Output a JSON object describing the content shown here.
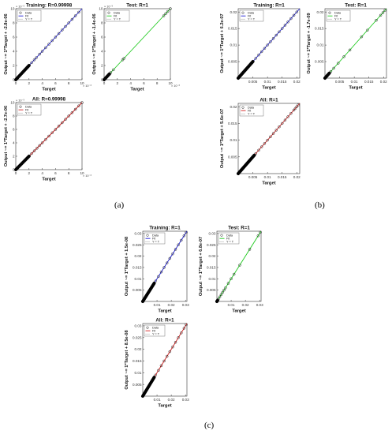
{
  "panel_labels": {
    "a": "(a)",
    "b": "(b)",
    "c": "(c)"
  },
  "legend_labels": {
    "data": "Data",
    "fit": "Fit",
    "ident": "Y = T"
  },
  "chart_data": [
    {
      "id": "a-training",
      "type": "scatter",
      "title": "Training: R=0.99998",
      "xlabel": "Target",
      "ylabel": "Output ~= 1*Target + -2.8e-06",
      "xlim": [
        0,
        10
      ],
      "ylim": [
        0,
        10
      ],
      "xticks": [
        "0",
        "2",
        "4",
        "6",
        "8",
        "10"
      ],
      "yticks": [
        "0",
        "2",
        "4",
        "6",
        "8",
        "10"
      ],
      "xexp": "× 10⁻³",
      "yexp": "× 10⁻³",
      "fit_color": "#1f1fd6",
      "points": [
        [
          0,
          0
        ],
        [
          0.4,
          0.4
        ],
        [
          0.8,
          0.8
        ],
        [
          1.2,
          1.2
        ],
        [
          1.6,
          1.6
        ],
        [
          2.0,
          2.0
        ],
        [
          2.4,
          2.4
        ],
        [
          2.8,
          2.8
        ],
        [
          3.1,
          3.1
        ],
        [
          3.6,
          3.6
        ],
        [
          4.0,
          4.0
        ],
        [
          4.5,
          4.5
        ],
        [
          5.0,
          5.0
        ],
        [
          5.5,
          5.5
        ],
        [
          6.0,
          6.0
        ],
        [
          6.5,
          6.5
        ],
        [
          7.0,
          7.0
        ],
        [
          7.5,
          7.5
        ],
        [
          8.0,
          8.0
        ],
        [
          8.5,
          8.5
        ],
        [
          9.0,
          9.0
        ],
        [
          9.5,
          9.5
        ]
      ],
      "dense_range": [
        0,
        2
      ]
    },
    {
      "id": "a-test",
      "type": "scatter",
      "title": "Test: R=1",
      "xlabel": "Target",
      "ylabel": "Output ~= 1*Target + -1.4e-06",
      "xlim": [
        0,
        10
      ],
      "ylim": [
        0,
        10
      ],
      "xticks": [
        "0",
        "2",
        "4",
        "6",
        "8",
        "10"
      ],
      "yticks": [
        "0",
        "2",
        "4",
        "6",
        "8",
        "10"
      ],
      "xexp": "× 10⁻³",
      "yexp": "× 10⁻³",
      "fit_color": "#1fcc1f",
      "points": [
        [
          0,
          0
        ],
        [
          0.3,
          0.3
        ],
        [
          0.6,
          0.6
        ],
        [
          1.0,
          1.0
        ],
        [
          1.4,
          1.4
        ],
        [
          2.8,
          2.8
        ],
        [
          3.0,
          3.0
        ],
        [
          9.0,
          9.0
        ],
        [
          9.3,
          9.3
        ],
        [
          9.6,
          9.6
        ],
        [
          10,
          10
        ]
      ],
      "dense_range": [
        0,
        0.8
      ]
    },
    {
      "id": "a-all",
      "type": "scatter",
      "title": "All: R=0.99998",
      "xlabel": "Target",
      "ylabel": "Output ~= 1*Target + -2.7e-06",
      "xlim": [
        0,
        10
      ],
      "ylim": [
        0,
        10
      ],
      "xticks": [
        "0",
        "2",
        "4",
        "6",
        "8",
        "10"
      ],
      "yticks": [
        "0",
        "2",
        "4",
        "6",
        "8",
        "10"
      ],
      "xexp": "× 10⁻³",
      "yexp": "× 10⁻³",
      "fit_color": "#d41f1f",
      "points": [
        [
          0,
          0
        ],
        [
          0.4,
          0.4
        ],
        [
          0.8,
          0.8
        ],
        [
          1.2,
          1.2
        ],
        [
          1.6,
          1.6
        ],
        [
          2.0,
          2.0
        ],
        [
          2.4,
          2.4
        ],
        [
          2.8,
          2.8
        ],
        [
          3.2,
          3.2
        ],
        [
          3.6,
          3.6
        ],
        [
          4.0,
          4.0
        ],
        [
          4.5,
          4.5
        ],
        [
          5.0,
          5.0
        ],
        [
          5.5,
          5.5
        ],
        [
          6.0,
          6.0
        ],
        [
          6.5,
          6.5
        ],
        [
          7.0,
          7.0
        ],
        [
          7.5,
          7.5
        ],
        [
          8.0,
          8.0
        ],
        [
          8.5,
          8.5
        ],
        [
          9.0,
          9.0
        ],
        [
          9.5,
          9.5
        ],
        [
          10,
          10
        ]
      ],
      "dense_range": [
        0,
        2
      ]
    },
    {
      "id": "b-training",
      "type": "scatter",
      "title": "Training: R=1",
      "xlabel": "Target",
      "ylabel": "Output ~= 1*Target + 6.2e-07",
      "xlim": [
        0,
        0.021
      ],
      "ylim": [
        0,
        0.021
      ],
      "xticks": [
        "0.005",
        "0.01",
        "0.015",
        "0.02"
      ],
      "xtickvals": [
        0.005,
        0.01,
        0.015,
        0.02
      ],
      "yticks": [
        "0.005",
        "0.01",
        "0.015",
        "0.02"
      ],
      "ytickvals": [
        0.005,
        0.01,
        0.015,
        0.02
      ],
      "fit_color": "#1f1fd6",
      "points": [
        [
          0.001,
          0.001
        ],
        [
          0.002,
          0.002
        ],
        [
          0.003,
          0.003
        ],
        [
          0.004,
          0.004
        ],
        [
          0.005,
          0.005
        ],
        [
          0.006,
          0.006
        ],
        [
          0.007,
          0.007
        ],
        [
          0.008,
          0.008
        ],
        [
          0.009,
          0.009
        ],
        [
          0.01,
          0.01
        ],
        [
          0.011,
          0.011
        ],
        [
          0.012,
          0.012
        ],
        [
          0.013,
          0.013
        ],
        [
          0.014,
          0.014
        ],
        [
          0.015,
          0.015
        ],
        [
          0.016,
          0.016
        ],
        [
          0.017,
          0.017
        ],
        [
          0.018,
          0.018
        ],
        [
          0.019,
          0.019
        ],
        [
          0.02,
          0.02
        ]
      ],
      "dense_range": [
        0,
        0.005
      ]
    },
    {
      "id": "b-test",
      "type": "scatter",
      "title": "Test: R=1",
      "xlabel": "Target",
      "ylabel": "Output ~= 1*Target + -1.7e-09",
      "xlim": [
        0,
        0.021
      ],
      "ylim": [
        0,
        0.021
      ],
      "xticks": [
        "0.005",
        "0.01",
        "0.015",
        "0.02"
      ],
      "xtickvals": [
        0.005,
        0.01,
        0.015,
        0.02
      ],
      "yticks": [
        "0.005",
        "0.01",
        "0.015",
        "0.02"
      ],
      "ytickvals": [
        0.005,
        0.01,
        0.015,
        0.02
      ],
      "fit_color": "#1fcc1f",
      "points": [
        [
          0.0005,
          0.0005
        ],
        [
          0.0012,
          0.0012
        ],
        [
          0.002,
          0.002
        ],
        [
          0.003,
          0.003
        ],
        [
          0.0045,
          0.0045
        ],
        [
          0.0065,
          0.0065
        ],
        [
          0.0085,
          0.0085
        ],
        [
          0.0125,
          0.0125
        ],
        [
          0.0145,
          0.0145
        ],
        [
          0.0175,
          0.0175
        ],
        [
          0.019,
          0.019
        ],
        [
          0.0198,
          0.0198
        ],
        [
          0.0205,
          0.0205
        ]
      ],
      "dense_range": [
        0,
        0.0015
      ]
    },
    {
      "id": "b-all",
      "type": "scatter",
      "title": "All: R=1",
      "xlabel": "Target",
      "ylabel": "Output ~= 1*Target + 5.6e-07",
      "xlim": [
        0,
        0.021
      ],
      "ylim": [
        0,
        0.021
      ],
      "xticks": [
        "0.005",
        "0.01",
        "0.015",
        "0.02"
      ],
      "xtickvals": [
        0.005,
        0.01,
        0.015,
        0.02
      ],
      "yticks": [
        "0.005",
        "0.01",
        "0.015",
        "0.02"
      ],
      "ytickvals": [
        0.005,
        0.01,
        0.015,
        0.02
      ],
      "fit_color": "#d41f1f",
      "points": [
        [
          0.006,
          0.006
        ],
        [
          0.007,
          0.007
        ],
        [
          0.008,
          0.008
        ],
        [
          0.009,
          0.009
        ],
        [
          0.01,
          0.01
        ],
        [
          0.011,
          0.011
        ],
        [
          0.012,
          0.012
        ],
        [
          0.013,
          0.013
        ],
        [
          0.014,
          0.014
        ],
        [
          0.015,
          0.015
        ],
        [
          0.016,
          0.016
        ],
        [
          0.017,
          0.017
        ],
        [
          0.018,
          0.018
        ],
        [
          0.019,
          0.019
        ],
        [
          0.0195,
          0.0195
        ],
        [
          0.02,
          0.02
        ],
        [
          0.0205,
          0.0205
        ]
      ],
      "dense_range": [
        0,
        0.0055
      ]
    },
    {
      "id": "c-training",
      "type": "scatter",
      "title": "Training: R=1",
      "xlabel": "Target",
      "ylabel": "Output ~= 1*Target + 1.5e-08",
      "xlim": [
        0,
        0.031
      ],
      "ylim": [
        0,
        0.031
      ],
      "xticks": [
        "0.01",
        "0.02",
        "0.03"
      ],
      "xtickvals": [
        0.01,
        0.02,
        0.03
      ],
      "yticks": [
        "0.005",
        "0.01",
        "0.015",
        "0.02",
        "0.025",
        "0.03"
      ],
      "ytickvals": [
        0.005,
        0.01,
        0.015,
        0.02,
        0.025,
        0.03
      ],
      "fit_color": "#1f1fd6",
      "points": [
        [
          0.009,
          0.009
        ],
        [
          0.011,
          0.011
        ],
        [
          0.013,
          0.013
        ],
        [
          0.015,
          0.015
        ],
        [
          0.017,
          0.017
        ],
        [
          0.019,
          0.019
        ],
        [
          0.021,
          0.021
        ],
        [
          0.023,
          0.023
        ],
        [
          0.025,
          0.025
        ],
        [
          0.027,
          0.027
        ],
        [
          0.029,
          0.029
        ],
        [
          0.0305,
          0.0305
        ]
      ],
      "dense_range": [
        0,
        0.008
      ]
    },
    {
      "id": "c-test",
      "type": "scatter",
      "title": "Test: R=1",
      "xlabel": "Target",
      "ylabel": "Output ~= 1*Target + 6.8e-07",
      "xlim": [
        0,
        0.031
      ],
      "ylim": [
        0,
        0.031
      ],
      "xticks": [
        "0.01",
        "0.02",
        "0.03"
      ],
      "xtickvals": [
        0.01,
        0.02,
        0.03
      ],
      "yticks": [
        "0.005",
        "0.01",
        "0.015",
        "0.02",
        "0.025",
        "0.03"
      ],
      "ytickvals": [
        0.005,
        0.01,
        0.015,
        0.02,
        0.025,
        0.03
      ],
      "fit_color": "#1fcc1f",
      "points": [
        [
          0.001,
          0.001
        ],
        [
          0.002,
          0.002
        ],
        [
          0.003,
          0.003
        ],
        [
          0.004,
          0.004
        ],
        [
          0.005,
          0.005
        ],
        [
          0.006,
          0.006
        ],
        [
          0.008,
          0.008
        ],
        [
          0.01,
          0.01
        ],
        [
          0.012,
          0.012
        ],
        [
          0.016,
          0.016
        ],
        [
          0.023,
          0.023
        ],
        [
          0.029,
          0.029
        ],
        [
          0.0305,
          0.0305
        ]
      ],
      "dense_range": [
        0,
        0.0005
      ]
    },
    {
      "id": "c-all",
      "type": "scatter",
      "title": "All: R=1",
      "xlabel": "Target",
      "ylabel": "Output ~= 1*Target + 8.5e-08",
      "xlim": [
        0,
        0.031
      ],
      "ylim": [
        0,
        0.031
      ],
      "xticks": [
        "0.01",
        "0.02",
        "0.03"
      ],
      "xtickvals": [
        0.01,
        0.02,
        0.03
      ],
      "yticks": [
        "0.005",
        "0.01",
        "0.015",
        "0.02",
        "0.025",
        "0.03"
      ],
      "ytickvals": [
        0.005,
        0.01,
        0.015,
        0.02,
        0.025,
        0.03
      ],
      "fit_color": "#d41f1f",
      "points": [
        [
          0.009,
          0.009
        ],
        [
          0.011,
          0.011
        ],
        [
          0.013,
          0.013
        ],
        [
          0.015,
          0.015
        ],
        [
          0.017,
          0.017
        ],
        [
          0.019,
          0.019
        ],
        [
          0.021,
          0.021
        ],
        [
          0.023,
          0.023
        ],
        [
          0.025,
          0.025
        ],
        [
          0.027,
          0.027
        ],
        [
          0.029,
          0.029
        ],
        [
          0.0305,
          0.0305
        ]
      ],
      "dense_range": [
        0,
        0.008
      ]
    }
  ]
}
